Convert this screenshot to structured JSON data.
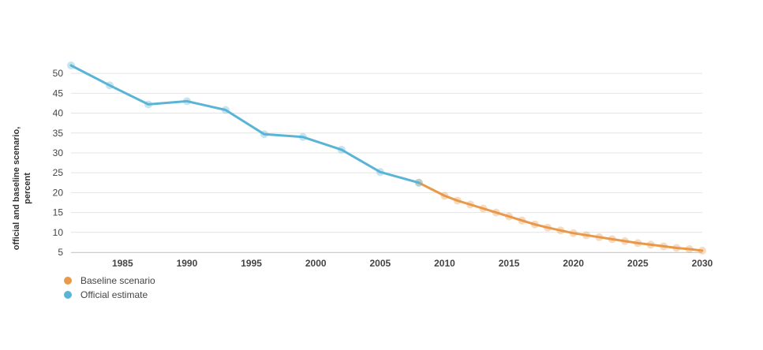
{
  "chart_data": {
    "type": "line",
    "title": "",
    "xlabel": "",
    "ylabel_lines": [
      "official and baseline scenario,",
      "percent"
    ],
    "xlim": [
      1981,
      2030
    ],
    "ylim": [
      5,
      53
    ],
    "x_ticks": [
      1985,
      1990,
      1995,
      2000,
      2005,
      2010,
      2015,
      2020,
      2025,
      2030
    ],
    "y_ticks": [
      5,
      10,
      15,
      20,
      25,
      30,
      35,
      40,
      45,
      50
    ],
    "grid": true,
    "legend_position": "bottom-left",
    "series": [
      {
        "name": "Baseline scenario",
        "color": "#e8994a",
        "x": [
          2008,
          2010,
          2011,
          2012,
          2013,
          2014,
          2015,
          2016,
          2017,
          2018,
          2019,
          2020,
          2021,
          2022,
          2023,
          2024,
          2025,
          2026,
          2027,
          2028,
          2029,
          2030
        ],
        "y": [
          22.5,
          19.2,
          18.0,
          17.0,
          16.0,
          15.0,
          14.0,
          13.0,
          12.0,
          11.2,
          10.5,
          9.8,
          9.3,
          8.8,
          8.3,
          7.8,
          7.3,
          6.9,
          6.5,
          6.1,
          5.8,
          5.4
        ]
      },
      {
        "name": "Official estimate",
        "color": "#5ab4d6",
        "x": [
          1981,
          1984,
          1987,
          1990,
          1993,
          1996,
          1999,
          2002,
          2005,
          2008
        ],
        "y": [
          52.0,
          47.0,
          42.2,
          43.0,
          40.8,
          34.7,
          34.0,
          30.8,
          25.2,
          22.5
        ]
      }
    ]
  }
}
